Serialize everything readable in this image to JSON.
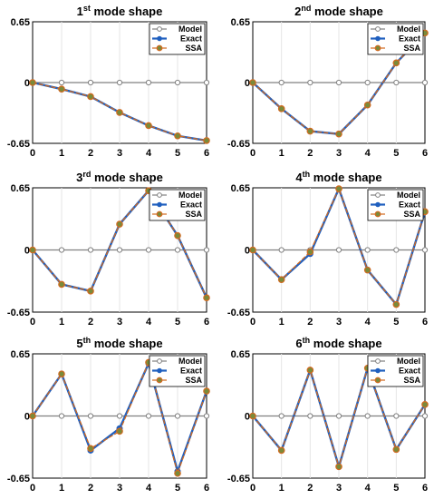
{
  "colors": {
    "model": "#808080",
    "exact": "#1f5fbf",
    "ssa": "#d2691e",
    "axes": "#000000",
    "grid": "#e6e6e6"
  },
  "legend": {
    "placement": "top-right",
    "items": [
      "Model",
      "Exact",
      "SSA"
    ]
  },
  "chart_data": [
    {
      "type": "line",
      "title": "1st mode shape",
      "title_num": "1",
      "title_sup": "st",
      "title_rest": " mode shape",
      "x": [
        0,
        1,
        2,
        3,
        4,
        5,
        6
      ],
      "xticks": [
        "0",
        "1",
        "2",
        "3",
        "4",
        "5",
        "6"
      ],
      "yticks": [
        "0.65",
        "0",
        "-0.65"
      ],
      "ylim": [
        -0.65,
        0.65
      ],
      "xlim": [
        0,
        6
      ],
      "grid": true,
      "series": [
        {
          "name": "Model",
          "values": [
            0,
            0,
            0,
            0,
            0,
            0,
            0
          ]
        },
        {
          "name": "Exact",
          "values": [
            0,
            -0.07,
            -0.15,
            -0.32,
            -0.46,
            -0.57,
            -0.62
          ]
        },
        {
          "name": "SSA",
          "values": [
            0,
            -0.07,
            -0.15,
            -0.32,
            -0.46,
            -0.57,
            -0.62
          ]
        }
      ]
    },
    {
      "type": "line",
      "title": "2nd mode shape",
      "title_num": "2",
      "title_sup": "nd",
      "title_rest": " mode shape",
      "x": [
        0,
        1,
        2,
        3,
        4,
        5,
        6
      ],
      "xticks": [
        "0",
        "1",
        "2",
        "3",
        "4",
        "5",
        "6"
      ],
      "yticks": [
        "0.65",
        "0",
        "-0.65"
      ],
      "ylim": [
        -0.65,
        0.65
      ],
      "xlim": [
        0,
        6
      ],
      "grid": true,
      "series": [
        {
          "name": "Model",
          "values": [
            0,
            0,
            0,
            0,
            0,
            0,
            0
          ]
        },
        {
          "name": "Exact",
          "values": [
            0,
            -0.28,
            -0.52,
            -0.55,
            -0.24,
            0.21,
            0.53
          ]
        },
        {
          "name": "SSA",
          "values": [
            0,
            -0.28,
            -0.52,
            -0.55,
            -0.24,
            0.21,
            0.53
          ]
        }
      ]
    },
    {
      "type": "line",
      "title": "3rd mode shape",
      "title_num": "3",
      "title_sup": "rd",
      "title_rest": " mode shape",
      "x": [
        0,
        1,
        2,
        3,
        4,
        5,
        6
      ],
      "xticks": [
        "0",
        "1",
        "2",
        "3",
        "4",
        "5",
        "6"
      ],
      "yticks": [
        "0.65",
        "0",
        "-0.65"
      ],
      "ylim": [
        -0.65,
        0.65
      ],
      "xlim": [
        0,
        6
      ],
      "grid": true,
      "series": [
        {
          "name": "Model",
          "values": [
            0,
            0,
            0,
            0,
            0,
            0,
            0
          ]
        },
        {
          "name": "Exact",
          "values": [
            0,
            -0.36,
            -0.43,
            0.27,
            0.62,
            0.15,
            -0.5
          ]
        },
        {
          "name": "SSA",
          "values": [
            0,
            -0.36,
            -0.43,
            0.27,
            0.62,
            0.15,
            -0.5
          ]
        }
      ]
    },
    {
      "type": "line",
      "title": "4th mode shape",
      "title_num": "4",
      "title_sup": "th",
      "title_rest": " mode shape",
      "x": [
        0,
        1,
        2,
        3,
        4,
        5,
        6
      ],
      "xticks": [
        "0",
        "1",
        "2",
        "3",
        "4",
        "5",
        "6"
      ],
      "yticks": [
        "0.65",
        "0",
        "-0.65"
      ],
      "ylim": [
        -0.65,
        0.65
      ],
      "xlim": [
        0,
        6
      ],
      "grid": true,
      "series": [
        {
          "name": "Model",
          "values": [
            0,
            0,
            0,
            0,
            0,
            0,
            0
          ]
        },
        {
          "name": "Exact",
          "values": [
            0,
            -0.31,
            -0.04,
            0.64,
            -0.21,
            -0.57,
            0.4
          ]
        },
        {
          "name": "SSA",
          "values": [
            0,
            -0.31,
            -0.02,
            0.64,
            -0.21,
            -0.57,
            0.4
          ]
        }
      ]
    },
    {
      "type": "line",
      "title": "5th mode shape",
      "title_num": "5",
      "title_sup": "th",
      "title_rest": " mode shape",
      "x": [
        0,
        1,
        2,
        3,
        4,
        5,
        6
      ],
      "xticks": [
        "0",
        "1",
        "2",
        "3",
        "4",
        "5",
        "6"
      ],
      "yticks": [
        "0.65",
        "0",
        "-0.65"
      ],
      "ylim": [
        -0.65,
        0.65
      ],
      "xlim": [
        0,
        6
      ],
      "grid": true,
      "series": [
        {
          "name": "Model",
          "values": [
            0,
            0,
            0,
            0,
            0,
            0,
            0
          ]
        },
        {
          "name": "Exact",
          "values": [
            0,
            0.44,
            -0.36,
            -0.13,
            0.55,
            -0.58,
            0.26
          ]
        },
        {
          "name": "SSA",
          "values": [
            0,
            0.44,
            -0.34,
            -0.16,
            0.56,
            -0.6,
            0.26
          ]
        }
      ]
    },
    {
      "type": "line",
      "title": "6th mode shape",
      "title_num": "6",
      "title_sup": "th",
      "title_rest": " mode shape",
      "x": [
        0,
        1,
        2,
        3,
        4,
        5,
        6
      ],
      "xticks": [
        "0",
        "1",
        "2",
        "3",
        "4",
        "5",
        "6"
      ],
      "yticks": [
        "0.65",
        "0",
        "-0.65"
      ],
      "ylim": [
        -0.65,
        0.65
      ],
      "xlim": [
        0,
        6
      ],
      "grid": true,
      "series": [
        {
          "name": "Model",
          "values": [
            0,
            0,
            0,
            0,
            0,
            0,
            0
          ]
        },
        {
          "name": "Exact",
          "values": [
            0,
            -0.36,
            0.48,
            -0.53,
            0.5,
            -0.35,
            0.12
          ]
        },
        {
          "name": "SSA",
          "values": [
            0,
            -0.36,
            0.48,
            -0.53,
            0.5,
            -0.35,
            0.12
          ]
        }
      ]
    }
  ]
}
